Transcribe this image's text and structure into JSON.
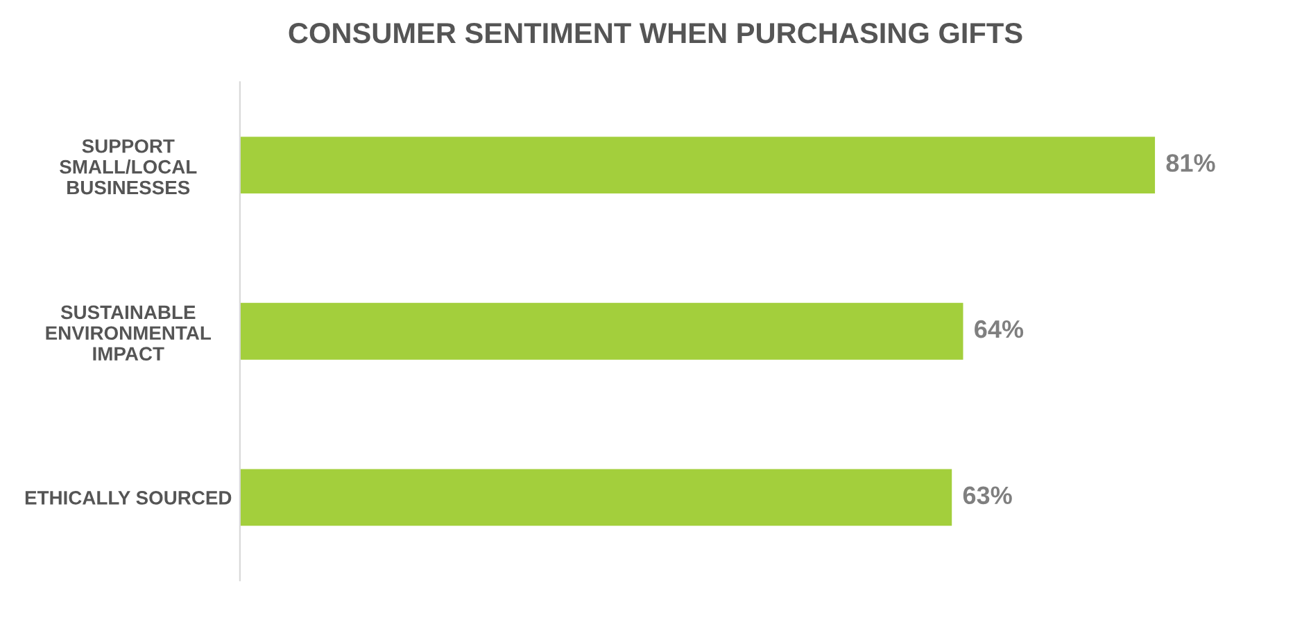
{
  "chart_data": {
    "type": "bar",
    "orientation": "horizontal",
    "title": "CONSUMER SENTIMENT WHEN PURCHASING GIFTS",
    "categories": [
      "SUPPORT\nSMALL/LOCAL\nBUSINESSES",
      "SUSTAINABLE\nENVIRONMENTAL\nIMPACT",
      "ETHICALLY SOURCED"
    ],
    "values": [
      81,
      64,
      63
    ],
    "value_labels": [
      "81%",
      "64%",
      "63%"
    ],
    "color": "#a3cf3c",
    "grid": false,
    "legend": false,
    "tick_labels": "y"
  }
}
